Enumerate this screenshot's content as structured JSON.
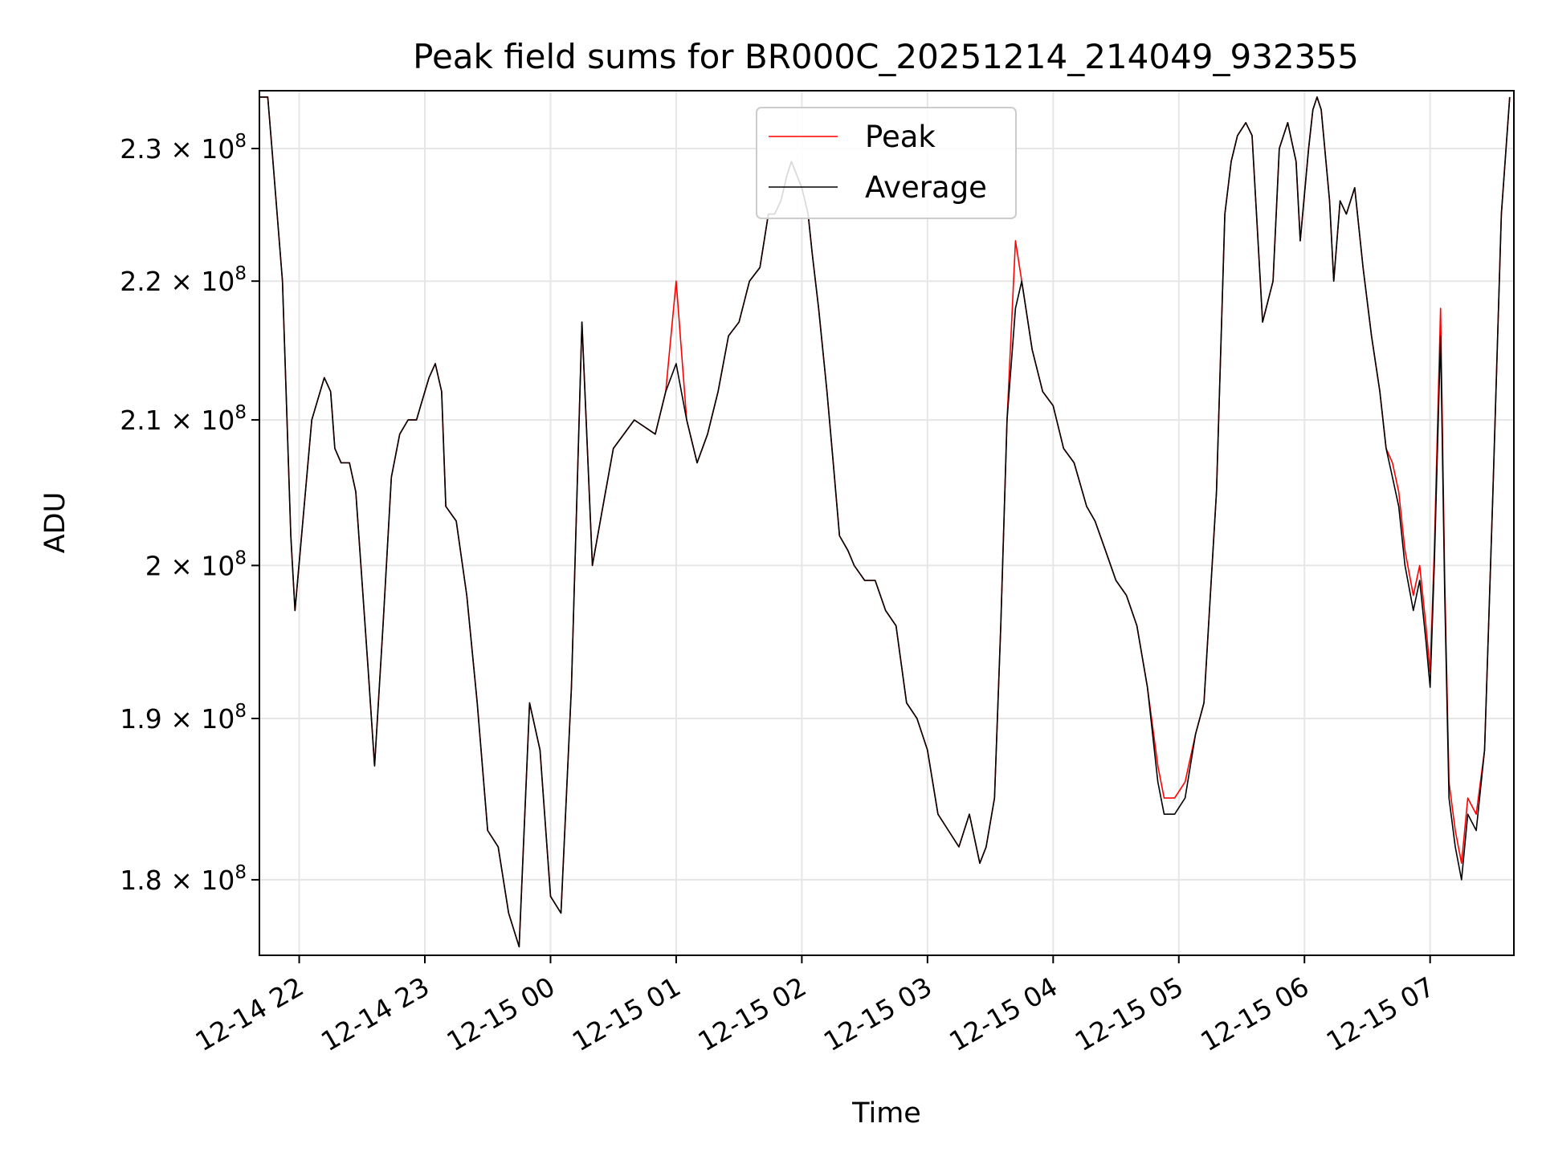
{
  "chart_data": {
    "type": "line",
    "title": "Peak field sums for BR000C_20251214_214049_932355",
    "xlabel": "Time",
    "ylabel": "ADU",
    "y_scale": "log",
    "x_range": [
      "12-14 21:41",
      "12-15 07:40"
    ],
    "ylim": [
      175500000,
      234500000
    ],
    "x_ticks": [
      "12-14 22",
      "12-14 23",
      "12-15 00",
      "12-15 01",
      "12-15 02",
      "12-15 03",
      "12-15 04",
      "12-15 05",
      "12-15 06",
      "12-15 07"
    ],
    "y_ticks": [
      {
        "value": 180000000,
        "mantissa": "1.8",
        "base": "10",
        "exp": "8"
      },
      {
        "value": 190000000,
        "mantissa": "1.9",
        "base": "10",
        "exp": "8"
      },
      {
        "value": 200000000,
        "mantissa": "2",
        "base": "10",
        "exp": "8"
      },
      {
        "value": 210000000,
        "mantissa": "2.1",
        "base": "10",
        "exp": "8"
      },
      {
        "value": 220000000,
        "mantissa": "2.2",
        "base": "10",
        "exp": "8"
      },
      {
        "value": 230000000,
        "mantissa": "2.3",
        "base": "10",
        "exp": "8"
      }
    ],
    "grid": true,
    "legend_position": "top-center",
    "x_time_labels": [
      "12-14 21:41",
      "12-14 21:45",
      "12-14 21:47",
      "12-14 21:52",
      "12-14 21:56",
      "12-14 21:58",
      "12-14 22:06",
      "12-14 22:12",
      "12-14 22:15",
      "12-14 22:17",
      "12-14 22:20",
      "12-14 22:24",
      "12-14 22:27",
      "12-14 22:33",
      "12-14 22:36",
      "12-14 22:40",
      "12-14 22:44",
      "12-14 22:48",
      "12-14 22:52",
      "12-14 22:55",
      "12-14 22:56",
      "12-14 22:58",
      "12-14 23:02",
      "12-14 23:05",
      "12-14 23:08",
      "12-14 23:10",
      "12-14 23:15",
      "12-14 23:20",
      "12-14 23:25",
      "12-14 23:30",
      "12-14 23:35",
      "12-14 23:40",
      "12-14 23:45",
      "12-14 23:50",
      "12-14 23:55",
      "12-15 00:00",
      "12-15 00:05",
      "12-15 00:10",
      "12-15 00:15",
      "12-15 00:20",
      "12-15 00:25",
      "12-15 00:30",
      "12-15 00:40",
      "12-15 00:50",
      "12-15 00:55",
      "12-15 01:00",
      "12-15 01:05",
      "12-15 01:10",
      "12-15 01:15",
      "12-15 01:20",
      "12-15 01:25",
      "12-15 01:30",
      "12-15 01:35",
      "12-15 01:40",
      "12-15 01:42",
      "12-15 01:44",
      "12-15 01:47",
      "12-15 01:50",
      "12-15 01:53",
      "12-15 01:55",
      "12-15 02:00",
      "12-15 02:03",
      "12-15 02:05",
      "12-15 02:08",
      "12-15 02:12",
      "12-15 02:15",
      "12-15 02:18",
      "12-15 02:22",
      "12-15 02:25",
      "12-15 02:30",
      "12-15 02:35",
      "12-15 02:40",
      "12-15 02:45",
      "12-15 02:50",
      "12-15 02:55",
      "12-15 03:00",
      "12-15 03:05",
      "12-15 03:10",
      "12-15 03:15",
      "12-15 03:20",
      "12-15 03:25",
      "12-15 03:28",
      "12-15 03:32",
      "12-15 03:35",
      "12-15 03:38",
      "12-15 03:42",
      "12-15 03:45",
      "12-15 03:50",
      "12-15 03:55",
      "12-15 04:00",
      "12-15 04:05",
      "12-15 04:10",
      "12-15 04:12",
      "12-15 04:16",
      "12-15 04:20",
      "12-15 04:25",
      "12-15 04:30",
      "12-15 04:35",
      "12-15 04:40",
      "12-15 04:45",
      "12-15 04:50",
      "12-15 04:53",
      "12-15 04:58",
      "12-15 05:03",
      "12-15 05:08",
      "12-15 05:12",
      "12-15 05:18",
      "12-15 05:22",
      "12-15 05:25",
      "12-15 05:28",
      "12-15 05:32",
      "12-15 05:35",
      "12-15 05:40",
      "12-15 05:45",
      "12-15 05:48",
      "12-15 05:52",
      "12-15 05:56",
      "12-15 05:58",
      "12-15 06:02",
      "12-15 06:04",
      "12-15 06:06",
      "12-15 06:08",
      "12-15 06:12",
      "12-15 06:14",
      "12-15 06:17",
      "12-15 06:20",
      "12-15 06:24",
      "12-15 06:28",
      "12-15 06:32",
      "12-15 06:36",
      "12-15 06:39",
      "12-15 06:42",
      "12-15 06:45",
      "12-15 06:48",
      "12-15 06:52",
      "12-15 06:55",
      "12-15 06:58",
      "12-15 07:00",
      "12-15 07:02",
      "12-15 07:05",
      "12-15 07:07",
      "12-15 07:09",
      "12-15 07:12",
      "12-15 07:15",
      "12-15 07:18",
      "12-15 07:22",
      "12-15 07:26",
      "12-15 07:30",
      "12-15 07:34",
      "12-15 07:38",
      "12-15 07:40"
    ],
    "series": [
      {
        "name": "Average",
        "color": "#000000",
        "values": [
          2.34,
          2.34,
          2.3,
          2.2,
          2.02,
          1.97,
          2.1,
          2.13,
          2.12,
          2.08,
          2.07,
          2.07,
          2.05,
          1.93,
          1.87,
          1.96,
          2.06,
          2.09,
          2.1,
          2.1,
          2.1,
          2.11,
          2.13,
          2.14,
          2.12,
          2.04,
          2.03,
          1.98,
          1.91,
          1.83,
          1.82,
          1.78,
          1.76,
          1.91,
          1.88,
          1.79,
          1.78,
          1.92,
          2.17,
          2.0,
          2.04,
          2.08,
          2.1,
          2.09,
          2.12,
          2.14,
          2.1,
          2.07,
          2.09,
          2.12,
          2.16,
          2.17,
          2.2,
          2.21,
          2.23,
          2.25,
          2.25,
          2.26,
          2.28,
          2.29,
          2.27,
          2.25,
          2.22,
          2.18,
          2.12,
          2.07,
          2.02,
          2.01,
          2.0,
          1.99,
          1.99,
          1.97,
          1.96,
          1.91,
          1.9,
          1.88,
          1.84,
          1.83,
          1.82,
          1.84,
          1.81,
          1.82,
          1.85,
          1.96,
          2.1,
          2.18,
          2.2,
          2.15,
          2.12,
          2.11,
          2.08,
          2.07,
          2.06,
          2.04,
          2.03,
          2.01,
          1.99,
          1.98,
          1.96,
          1.92,
          1.86,
          1.84,
          1.84,
          1.85,
          1.89,
          1.91,
          2.05,
          2.25,
          2.29,
          2.31,
          2.32,
          2.31,
          2.17,
          2.2,
          2.3,
          2.32,
          2.29,
          2.23,
          2.3,
          2.33,
          2.34,
          2.33,
          2.26,
          2.2,
          2.26,
          2.25,
          2.27,
          2.21,
          2.16,
          2.12,
          2.08,
          2.06,
          2.04,
          2.0,
          1.97,
          1.99,
          1.95,
          1.92,
          2.0,
          2.16,
          1.98,
          1.85,
          1.82,
          1.8,
          1.84,
          1.83,
          1.88,
          2.05,
          2.25,
          2.34
        ]
      },
      {
        "name": "Peak",
        "color": "#ff0000",
        "values": [
          2.34,
          2.34,
          2.3,
          2.2,
          2.02,
          1.97,
          2.1,
          2.13,
          2.12,
          2.08,
          2.07,
          2.07,
          2.05,
          1.93,
          1.87,
          1.96,
          2.06,
          2.09,
          2.1,
          2.1,
          2.1,
          2.11,
          2.13,
          2.14,
          2.12,
          2.04,
          2.03,
          1.98,
          1.91,
          1.83,
          1.82,
          1.78,
          1.76,
          1.91,
          1.88,
          1.79,
          1.78,
          1.92,
          2.17,
          2.0,
          2.04,
          2.08,
          2.1,
          2.09,
          2.12,
          2.2,
          2.1,
          2.07,
          2.09,
          2.12,
          2.16,
          2.17,
          2.2,
          2.21,
          2.23,
          2.25,
          2.25,
          2.26,
          2.28,
          2.29,
          2.27,
          2.25,
          2.22,
          2.18,
          2.12,
          2.07,
          2.02,
          2.01,
          2.0,
          1.99,
          1.99,
          1.97,
          1.96,
          1.91,
          1.9,
          1.88,
          1.84,
          1.83,
          1.82,
          1.84,
          1.81,
          1.82,
          1.85,
          1.96,
          2.1,
          2.23,
          2.2,
          2.15,
          2.12,
          2.11,
          2.08,
          2.07,
          2.06,
          2.04,
          2.03,
          2.01,
          1.99,
          1.98,
          1.96,
          1.92,
          1.87,
          1.85,
          1.85,
          1.86,
          1.89,
          1.91,
          2.05,
          2.25,
          2.29,
          2.31,
          2.32,
          2.31,
          2.17,
          2.2,
          2.3,
          2.32,
          2.29,
          2.23,
          2.3,
          2.33,
          2.34,
          2.33,
          2.26,
          2.2,
          2.26,
          2.25,
          2.27,
          2.21,
          2.16,
          2.12,
          2.08,
          2.07,
          2.05,
          2.01,
          1.98,
          2.0,
          1.96,
          1.93,
          2.01,
          2.18,
          1.99,
          1.86,
          1.83,
          1.81,
          1.85,
          1.84,
          1.88,
          2.05,
          2.25,
          2.34
        ]
      }
    ],
    "value_multiplier": 100000000
  }
}
